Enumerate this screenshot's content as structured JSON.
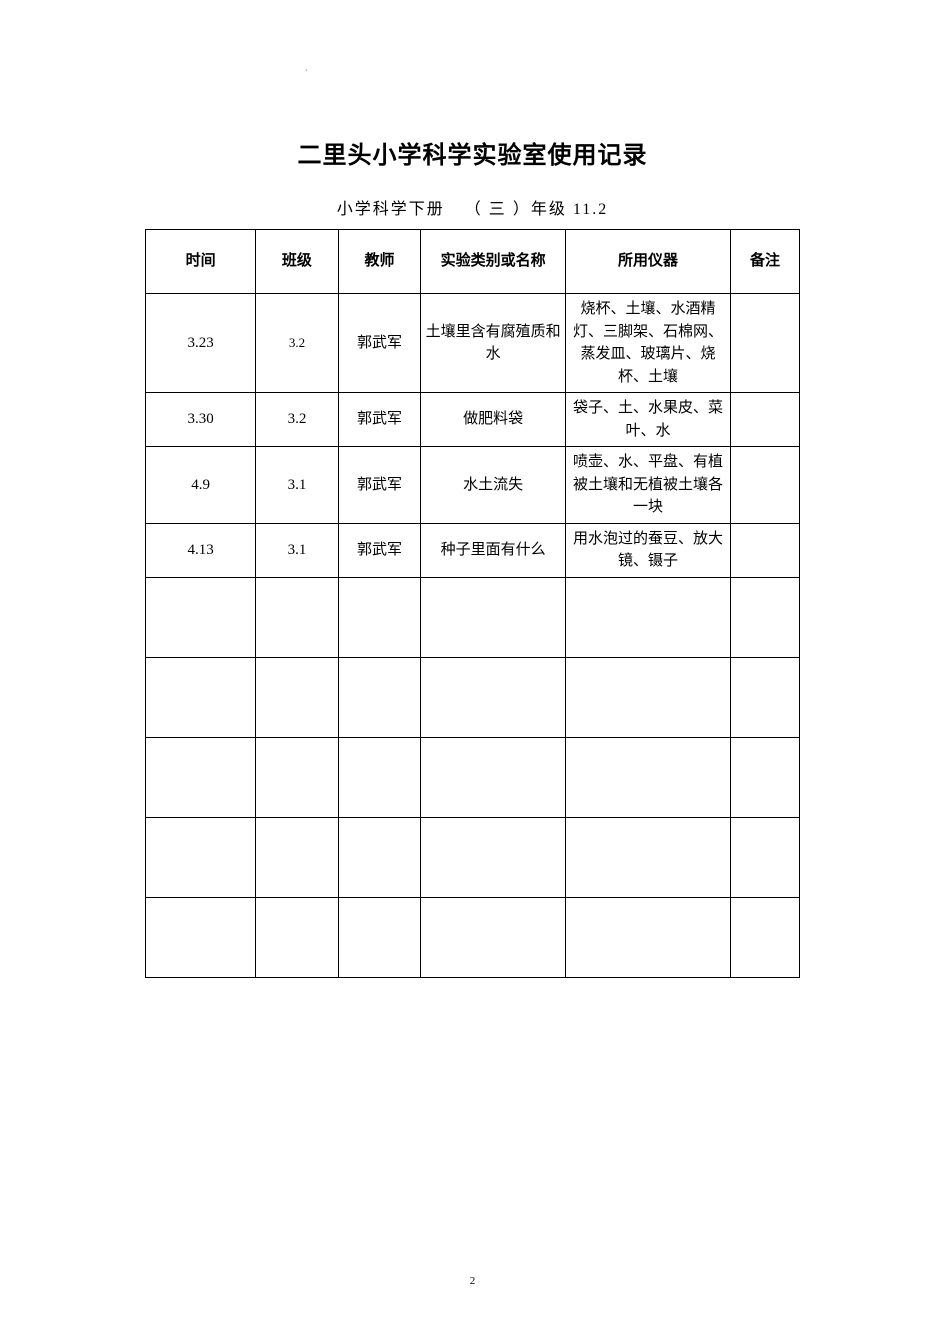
{
  "page": {
    "title": "二里头小学科学实验室使用记录",
    "subtitle_prefix": "小学科学下册",
    "subtitle_paren_open": "（ ",
    "subtitle_grade": "三",
    "subtitle_paren_close": " ）年级 11.2",
    "page_number": "2",
    "top_mark": "`"
  },
  "table": {
    "headers": {
      "time": "时间",
      "class": "班级",
      "teacher": "教师",
      "experiment": "实验类别或名称",
      "equipment": "所用仪器",
      "note": "备注"
    },
    "rows": [
      {
        "time": "3.23",
        "class": "3.2",
        "teacher": "郭武军",
        "experiment": "土壤里含有腐殖质和水",
        "equipment": "烧杯、土壤、水酒精灯、三脚架、石棉网、蒸发皿、玻璃片、烧杯、土壤",
        "note": ""
      },
      {
        "time": "3.30",
        "class": "3.2",
        "teacher": "郭武军",
        "experiment": "做肥料袋",
        "equipment": "袋子、土、水果皮、菜叶、水",
        "note": ""
      },
      {
        "time": "4.9",
        "class": "3.1",
        "teacher": "郭武军",
        "experiment": "水土流失",
        "equipment": "喷壶、水、平盘、有植被土壤和无植被土壤各一块",
        "note": ""
      },
      {
        "time": "4.13",
        "class": "3.1",
        "teacher": "郭武军",
        "experiment": "种子里面有什么",
        "equipment": "用水泡过的蚕豆、放大镜、镊子",
        "note": ""
      },
      {
        "time": "",
        "class": "",
        "teacher": "",
        "experiment": "",
        "equipment": "",
        "note": ""
      },
      {
        "time": "",
        "class": "",
        "teacher": "",
        "experiment": "",
        "equipment": "",
        "note": ""
      },
      {
        "time": "",
        "class": "",
        "teacher": "",
        "experiment": "",
        "equipment": "",
        "note": ""
      },
      {
        "time": "",
        "class": "",
        "teacher": "",
        "experiment": "",
        "equipment": "",
        "note": ""
      },
      {
        "time": "",
        "class": "",
        "teacher": "",
        "experiment": "",
        "equipment": "",
        "note": ""
      }
    ]
  },
  "style": {
    "background_color": "#ffffff",
    "text_color": "#000000",
    "border_color": "#000000",
    "title_fontsize": 24,
    "subtitle_fontsize": 16,
    "cell_fontsize": 15,
    "small_cell_fontsize": 13,
    "page_number_fontsize": 11,
    "font_family": "SimSun"
  }
}
